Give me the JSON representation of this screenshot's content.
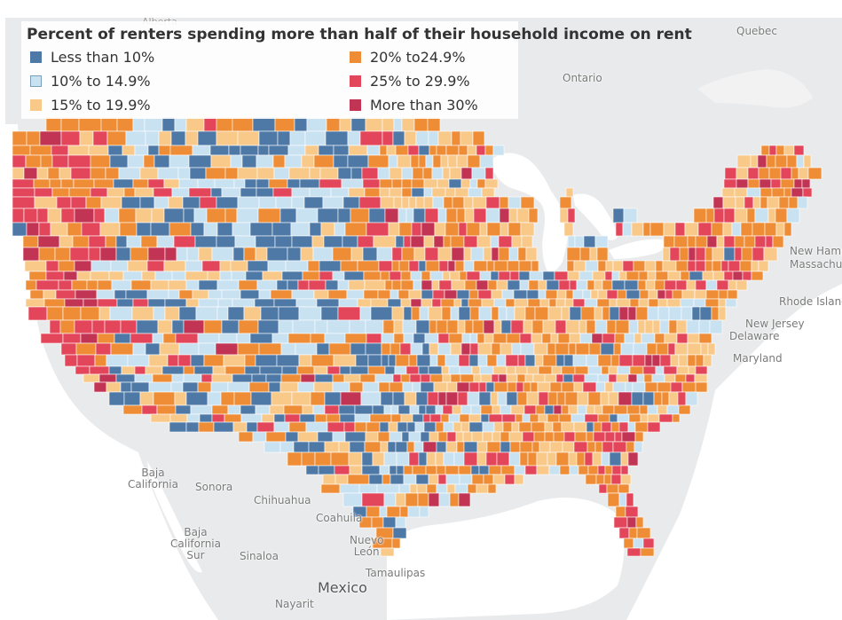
{
  "title": "Percent of renters spending more than half of their household income on rent",
  "legend": [
    {
      "label": "Less than 10%",
      "color": "#4e79a7"
    },
    {
      "label": "10% to 14.9%",
      "color": "#c9e2f2"
    },
    {
      "label": "15% to 19.9%",
      "color": "#f9c98a"
    },
    {
      "label": "20% to24.9%",
      "color": "#ef8d36"
    },
    {
      "label": "25% to 29.9%",
      "color": "#e3465a"
    },
    {
      "label": "More than 30%",
      "color": "#c23454"
    }
  ],
  "places": {
    "alberta": "Alberta",
    "quebec": "Quebec",
    "ontario": "Ontario",
    "new_hampshire": "New Hamp",
    "massachusetts": "Massachu",
    "rhode_island": "Rhode Island",
    "new_jersey": "New Jersey",
    "delaware": "Delaware",
    "maryland": "Maryland",
    "baja_california": "Baja\nCalifornia",
    "sonora": "Sonora",
    "chihuahua": "Chihuahua",
    "coahuila": "Coahuila",
    "nuevo_leon": "Nuevo\nLeón",
    "baja_california_sur": "Baja\nCalifornia\nSur",
    "sinaloa": "Sinaloa",
    "tamaulipas": "Tamaulipas",
    "mexico": "Mexico",
    "nayarit": "Nayarit"
  },
  "colors": {
    "background": "#e9eaeb",
    "water": "#ffffff",
    "land": "#e9eaeb",
    "border": "#ffffff"
  }
}
